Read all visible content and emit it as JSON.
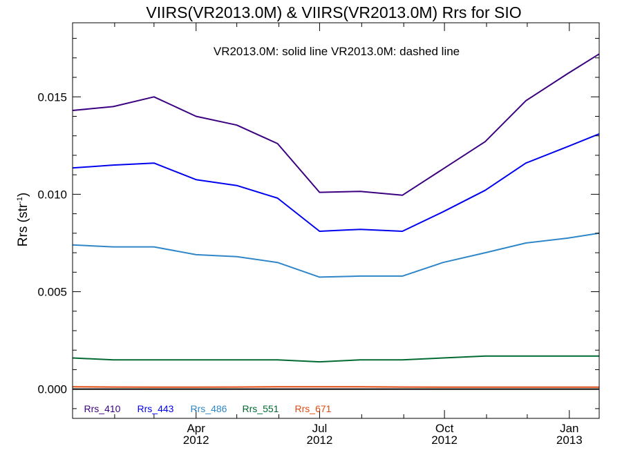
{
  "chart_data": {
    "type": "line",
    "title": "VIIRS(VR2013.0M) & VIIRS(VR2013.0M)  Rrs for SIO",
    "annotation": "VR2013.0M: solid line   VR2013.0M: dashed line",
    "ylabel_main": "Rrs (str",
    "ylabel_sup": "-1",
    "ylabel_close": ")",
    "ylim": [
      -0.0015,
      0.0188
    ],
    "xlim": [
      "2012-01-01",
      "2013-01-23"
    ],
    "grid": false,
    "legend_position": "bottom-left",
    "y_ticks": [
      {
        "value": 0.0,
        "label": "0.000"
      },
      {
        "value": 0.005,
        "label": "0.005"
      },
      {
        "value": 0.01,
        "label": "0.010"
      },
      {
        "value": 0.015,
        "label": "0.015"
      }
    ],
    "x_ticks": [
      {
        "date": "2012-04-01",
        "month": "Apr",
        "year": "2012"
      },
      {
        "date": "2012-07-01",
        "month": "Jul",
        "year": "2012"
      },
      {
        "date": "2012-10-01",
        "month": "Oct",
        "year": "2012"
      },
      {
        "date": "2013-01-01",
        "month": "Jan",
        "year": "2013"
      }
    ],
    "x": [
      "2012-01-01",
      "2012-01-31",
      "2012-03-01",
      "2012-04-01",
      "2012-05-01",
      "2012-05-31",
      "2012-07-01",
      "2012-07-31",
      "2012-08-31",
      "2012-09-30",
      "2012-10-31",
      "2012-11-30",
      "2012-12-31",
      "2013-01-23"
    ],
    "series": [
      {
        "name": "Rrs_410",
        "color": "#3a0080",
        "values": [
          0.0143,
          0.0145,
          0.015,
          0.014,
          0.01355,
          0.0126,
          0.0101,
          0.01015,
          0.00995,
          0.0113,
          0.0127,
          0.0148,
          0.0162,
          0.0172
        ]
      },
      {
        "name": "Rrs_443",
        "color": "#0000f0",
        "values": [
          0.01135,
          0.0115,
          0.0116,
          0.01075,
          0.01045,
          0.0098,
          0.0081,
          0.0082,
          0.0081,
          0.0091,
          0.0102,
          0.0116,
          0.01245,
          0.0131
        ]
      },
      {
        "name": "Rrs_486",
        "color": "#2e86c8",
        "values": [
          0.0074,
          0.0073,
          0.0073,
          0.0069,
          0.0068,
          0.0065,
          0.00575,
          0.0058,
          0.0058,
          0.0065,
          0.007,
          0.0075,
          0.00775,
          0.008
        ]
      },
      {
        "name": "Rrs_551",
        "color": "#006a30",
        "values": [
          0.0016,
          0.0015,
          0.0015,
          0.0015,
          0.0015,
          0.0015,
          0.0014,
          0.0015,
          0.0015,
          0.0016,
          0.0017,
          0.0017,
          0.0017,
          0.0017
        ]
      },
      {
        "name": "Rrs_671",
        "color": "#e04a10",
        "values": [
          0.00012,
          0.00011,
          0.0001,
          0.0001,
          0.00011,
          0.00012,
          0.00012,
          0.00012,
          0.00011,
          0.0001,
          0.0001,
          0.0001,
          0.0001,
          0.0001
        ]
      }
    ]
  }
}
